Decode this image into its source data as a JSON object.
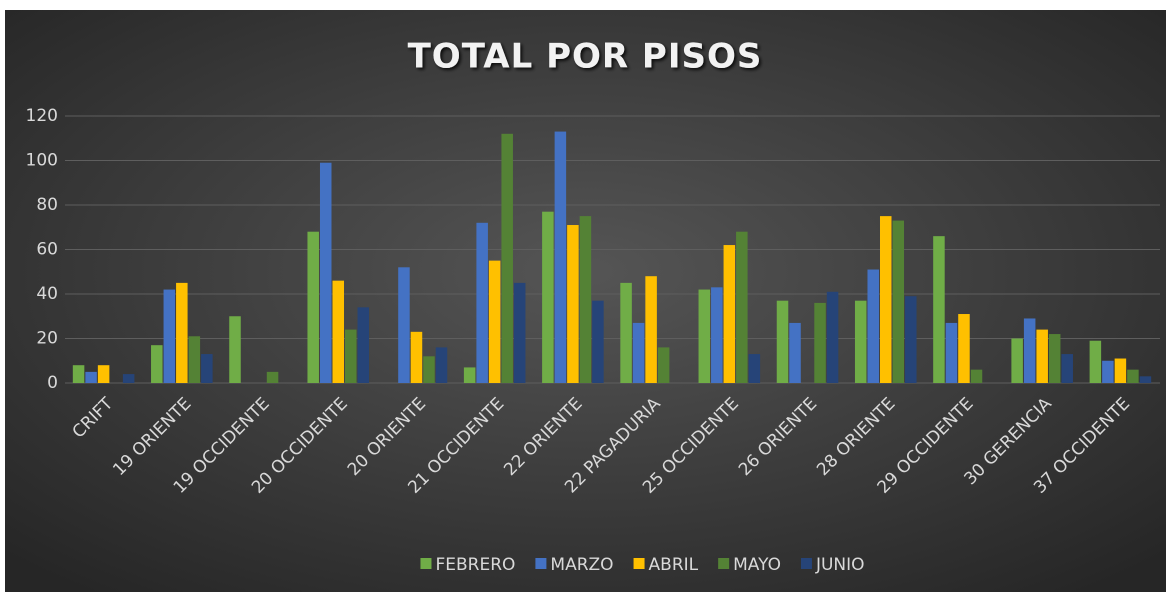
{
  "chart_data": {
    "type": "bar",
    "title": "TOTAL POR PISOS",
    "categories": [
      "CRIFT",
      "19 ORIENTE",
      "19 OCCIDENTE",
      "20 OCCIDENTE",
      "20 ORIENTE",
      "21 OCCIDENTE",
      "22 ORIENTE",
      "22 PAGADURIA",
      "25 OCCIDENTE",
      "26 ORIENTE",
      "28 ORIENTE",
      "29 OCCIDENTE",
      "30 GERENCIA",
      "37 OCCIDENTE"
    ],
    "series": [
      {
        "name": "FEBRERO",
        "color": "#70ad47",
        "values": [
          8,
          17,
          30,
          68,
          0,
          7,
          77,
          45,
          42,
          37,
          37,
          66,
          20,
          19
        ]
      },
      {
        "name": "MARZO",
        "color": "#4472c4",
        "values": [
          5,
          42,
          0,
          99,
          52,
          72,
          113,
          27,
          43,
          27,
          51,
          27,
          29,
          10
        ]
      },
      {
        "name": "ABRIL",
        "color": "#ffc000",
        "values": [
          8,
          45,
          0,
          46,
          23,
          55,
          71,
          48,
          62,
          0,
          75,
          31,
          24,
          11
        ]
      },
      {
        "name": "MAYO",
        "color": "#548235",
        "values": [
          0,
          21,
          5,
          24,
          12,
          112,
          75,
          16,
          68,
          36,
          73,
          6,
          22,
          6
        ]
      },
      {
        "name": "JUNIO",
        "color": "#264478",
        "values": [
          4,
          13,
          0,
          34,
          16,
          45,
          37,
          0,
          13,
          41,
          39,
          0,
          13,
          3
        ]
      }
    ],
    "ylim": [
      0,
      120
    ],
    "yticks": [
      0,
      20,
      40,
      60,
      80,
      100,
      120
    ],
    "grid": true,
    "legend": "bottom"
  }
}
